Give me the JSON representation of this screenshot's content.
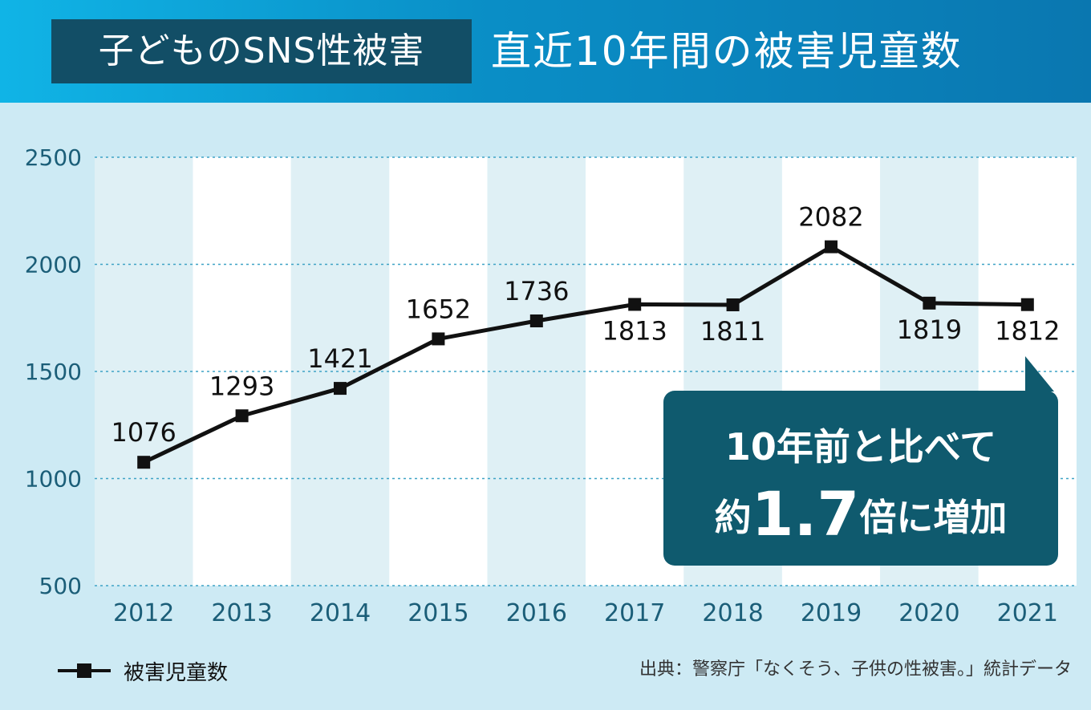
{
  "header": {
    "badge": "子どものSNS性被害",
    "title": "直近10年間の被害児童数"
  },
  "chart_data": {
    "type": "line",
    "categories": [
      "2012",
      "2013",
      "2014",
      "2015",
      "2016",
      "2017",
      "2018",
      "2019",
      "2020",
      "2021"
    ],
    "series": [
      {
        "name": "被害児童数",
        "values": [
          1076,
          1293,
          1421,
          1652,
          1736,
          1813,
          1811,
          2082,
          1819,
          1812
        ]
      }
    ],
    "ylim": [
      500,
      2500
    ],
    "yticks": [
      500,
      1000,
      1500,
      2000,
      2500
    ],
    "grid": "dotted horizontal",
    "legend": "bottom-left",
    "line_color": "#111111",
    "axis_text_color": "#1b5e78",
    "band_colors": [
      "#dff0f5",
      "#ffffff"
    ],
    "grid_color": "#3fa3c6"
  },
  "callout": {
    "line1": "10年前と比べて",
    "line2_prefix": "約",
    "line2_value": "1.7",
    "line2_suffix": "倍に増加"
  },
  "legend": {
    "label": "被害児童数"
  },
  "source": "出典：警察庁「なくそう、子供の性被害。」統計データ"
}
